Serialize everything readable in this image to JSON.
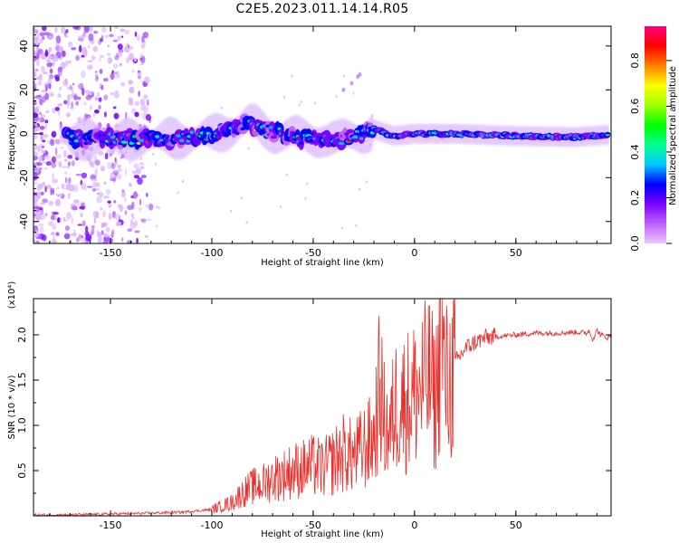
{
  "title": "C2E5.2023.011.14.14.R05",
  "chart_data": [
    {
      "type": "heatmap",
      "xlabel": "Height of straight line (km)",
      "ylabel": "Frequency (Hz)",
      "xlim": [
        -188,
        97
      ],
      "ylim": [
        -50,
        49
      ],
      "xticks": [
        -150,
        -100,
        -50,
        0,
        50
      ],
      "yticks": [
        -40,
        -20,
        0,
        20,
        40
      ],
      "colorbar": {
        "label": "Normalized spectral amplitude",
        "range": [
          0,
          0.95
        ],
        "ticks": [
          "0.0",
          "0.2",
          "0.4",
          "0.6",
          "0.8"
        ],
        "tick_values": [
          0.0,
          0.2,
          0.4,
          0.6,
          0.8
        ],
        "colors": [
          "#e8c8ff",
          "#c060ff",
          "#7a00ff",
          "#0000ff",
          "#00c8ff",
          "#00ff90",
          "#00ff00",
          "#a0ff00",
          "#ffff00",
          "#ff8000",
          "#ff0000",
          "#ff0080"
        ]
      },
      "ridge_frequency_hz": [
        {
          "x": -170,
          "f": -2.5
        },
        {
          "x": -150,
          "f": -2.5
        },
        {
          "x": -130,
          "f": -2.5
        },
        {
          "x": -115,
          "f": -2.0
        },
        {
          "x": -100,
          "f": -1.0
        },
        {
          "x": -90,
          "f": 3.0
        },
        {
          "x": -82,
          "f": 5.0
        },
        {
          "x": -75,
          "f": 2.0
        },
        {
          "x": -65,
          "f": 0.0
        },
        {
          "x": -55,
          "f": -2.0
        },
        {
          "x": -45,
          "f": -1.0
        },
        {
          "x": -38,
          "f": -3.5
        },
        {
          "x": -30,
          "f": -1.0
        },
        {
          "x": -20,
          "f": 2.0
        },
        {
          "x": -10,
          "f": -1.0
        },
        {
          "x": 0,
          "f": 0.0
        },
        {
          "x": 20,
          "f": 0.0
        },
        {
          "x": 50,
          "f": -1.0
        },
        {
          "x": 80,
          "f": -1.5
        },
        {
          "x": 95,
          "f": -0.5
        }
      ]
    },
    {
      "type": "line",
      "xlabel": "Height of straight line (km)",
      "ylabel": "SNR (10 * v/v)",
      "y_multiplier": "(x10⁴)",
      "xlim": [
        -188,
        97
      ],
      "ylim": [
        0.0,
        2.4
      ],
      "xticks": [
        -150,
        -100,
        -50,
        0,
        50
      ],
      "yticks": [
        0.5,
        1.0,
        1.5,
        2.0
      ],
      "color": "#e8302c",
      "series": [
        {
          "x": [
            -188,
            -170,
            -150,
            -130,
            -115,
            -100,
            -90,
            -85,
            -80,
            -75,
            -70,
            -65,
            -60,
            -55,
            -50,
            -45,
            -40,
            -35,
            -30,
            -25,
            -20,
            -17,
            -15,
            -12,
            -10,
            -7,
            -5,
            -2,
            0,
            3,
            5,
            8,
            10,
            12,
            13,
            15,
            18,
            20,
            23,
            25,
            30,
            35,
            40,
            50,
            60,
            70,
            80,
            85,
            86,
            88,
            90,
            92,
            95,
            97
          ],
          "y": [
            0.01,
            0.01,
            0.02,
            0.03,
            0.04,
            0.07,
            0.15,
            0.25,
            0.32,
            0.35,
            0.42,
            0.45,
            0.5,
            0.52,
            0.55,
            0.52,
            0.6,
            0.7,
            0.65,
            0.75,
            0.85,
            1.45,
            1.05,
            0.9,
            1.2,
            1.3,
            1.25,
            1.3,
            1.35,
            1.4,
            1.45,
            1.5,
            1.25,
            1.6,
            2.2,
            1.45,
            1.5,
            1.7,
            1.78,
            1.85,
            1.92,
            1.97,
            1.98,
            2.0,
            2.02,
            2.02,
            2.03,
            2.02,
            2.05,
            1.95,
            2.05,
            2.0,
            1.97,
            1.98
          ]
        }
      ]
    }
  ]
}
